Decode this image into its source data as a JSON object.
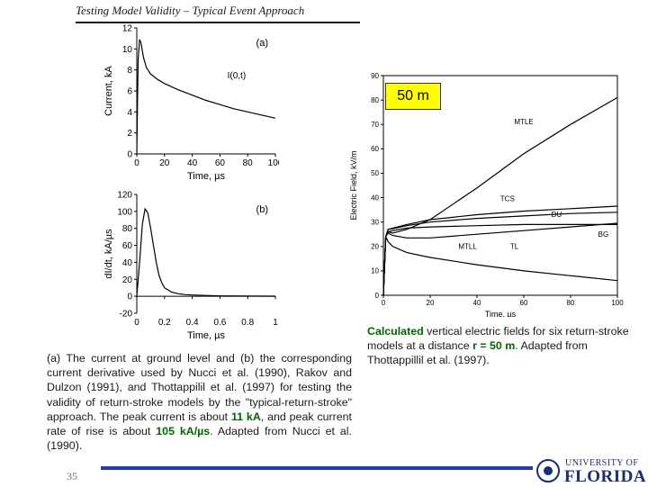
{
  "slide": {
    "title": "Testing Model Validity – Typical Event Approach",
    "page_number": "35",
    "distance_tag": "50 m"
  },
  "captions": {
    "left_1": "(a) The current at ground level and (b) the corresponding current derivative used by Nucci et al. (1990), Rakov and Dulzon (1991), and Thottappilil et al. (1997) for testing the validity of return-stroke models by the \"typical-return-stroke\" approach. The peak current is about ",
    "left_peak_current": "11 kA",
    "left_2": ", and peak current rate of rise is about ",
    "left_peak_rate": "105 kA/µs",
    "left_3": ". Adapted from Nucci et al. (1990).",
    "right_1": "Calculated",
    "right_2": " vertical electric fields for six return-stroke models at a distance ",
    "right_r": "r = 50 m",
    "right_3": ". Adapted from Thottappillil et al. (1997)."
  },
  "logo": {
    "line1": "UNIVERSITY OF",
    "line2": "FLORIDA"
  },
  "chart_data": [
    {
      "type": "line",
      "panel_label": "(a)",
      "xlabel": "Time, µs",
      "ylabel": "Current, kA",
      "xlim": [
        0,
        100
      ],
      "ylim": [
        0,
        12
      ],
      "xticks": [
        0,
        20,
        40,
        60,
        80,
        100
      ],
      "yticks": [
        0,
        2,
        4,
        6,
        8,
        10,
        12
      ],
      "grid": false,
      "series": [
        {
          "name": "I(0,t)",
          "x": [
            0,
            0.5,
            1,
            2,
            3,
            4,
            5,
            7,
            10,
            15,
            20,
            30,
            40,
            50,
            60,
            70,
            80,
            90,
            100
          ],
          "y": [
            0,
            5,
            9,
            10.9,
            10.6,
            9.8,
            9.1,
            8.2,
            7.6,
            7.1,
            6.7,
            6.1,
            5.6,
            5.1,
            4.7,
            4.3,
            4.0,
            3.7,
            3.4
          ]
        }
      ]
    },
    {
      "type": "line",
      "panel_label": "(b)",
      "xlabel": "Time, µs",
      "ylabel": "dI/dt, kA/µs",
      "xlim": [
        0,
        1
      ],
      "ylim": [
        -20,
        120
      ],
      "xticks": [
        0,
        0.2,
        0.4,
        0.6,
        0.8,
        1
      ],
      "yticks": [
        -20,
        0,
        20,
        40,
        60,
        80,
        100,
        120
      ],
      "grid": false,
      "series": [
        {
          "name": "",
          "x": [
            0,
            0.02,
            0.04,
            0.06,
            0.08,
            0.1,
            0.12,
            0.14,
            0.16,
            0.18,
            0.2,
            0.25,
            0.3,
            0.35,
            0.4,
            0.5,
            0.6,
            0.8,
            1.0
          ],
          "y": [
            0,
            40,
            85,
            103,
            98,
            80,
            60,
            40,
            25,
            16,
            10,
            5,
            3,
            2,
            1.5,
            1,
            0.5,
            0.3,
            0.2
          ]
        }
      ]
    },
    {
      "type": "line",
      "xlabel": "Time, µs",
      "ylabel": "Electric Field, kV/m",
      "xlim": [
        0,
        100
      ],
      "ylim": [
        0,
        90
      ],
      "xticks": [
        0,
        20,
        40,
        60,
        80,
        100
      ],
      "yticks": [
        0,
        10,
        20,
        30,
        40,
        50,
        60,
        70,
        80,
        90
      ],
      "grid": false,
      "series": [
        {
          "name": "MTLE",
          "x": [
            0,
            1,
            2,
            4,
            10,
            20,
            40,
            60,
            80,
            100
          ],
          "y": [
            0,
            24,
            26,
            25.5,
            27,
            31,
            44,
            58,
            70,
            81
          ]
        },
        {
          "name": "TCS",
          "x": [
            0,
            1,
            2,
            4,
            10,
            20,
            40,
            60,
            80,
            100
          ],
          "y": [
            0,
            24,
            27,
            27.5,
            29,
            31,
            33,
            34.5,
            35.5,
            36.5
          ]
        },
        {
          "name": "DU",
          "x": [
            0,
            1,
            2,
            4,
            10,
            20,
            40,
            60,
            80,
            100
          ],
          "y": [
            0,
            24,
            27,
            27.3,
            28.5,
            30,
            31.5,
            32.5,
            33.5,
            34
          ]
        },
        {
          "name": "BG",
          "x": [
            0,
            1,
            2,
            4,
            10,
            20,
            40,
            60,
            80,
            100
          ],
          "y": [
            0,
            24,
            26,
            26.5,
            27.5,
            28,
            28.5,
            29,
            29,
            29
          ]
        },
        {
          "name": "MTLL",
          "x": [
            0,
            1,
            2,
            4,
            10,
            20,
            40,
            60,
            80,
            100
          ],
          "y": [
            0,
            24,
            25.5,
            24.5,
            23.5,
            23.5,
            25,
            26.5,
            28,
            29.5
          ]
        },
        {
          "name": "TL",
          "x": [
            0,
            1,
            2,
            4,
            10,
            20,
            40,
            60,
            80,
            100
          ],
          "y": [
            0,
            24,
            22,
            20,
            17.5,
            15.5,
            12.5,
            10,
            8,
            6
          ]
        }
      ]
    }
  ]
}
